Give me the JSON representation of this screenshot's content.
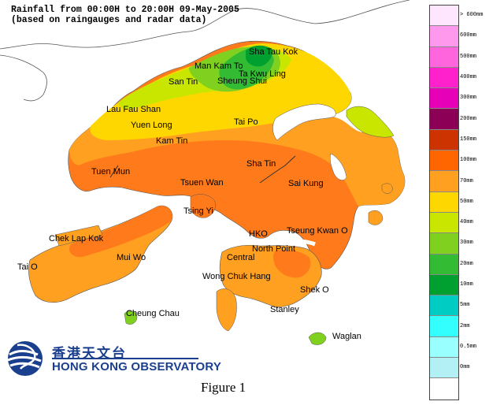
{
  "title": {
    "line1": "Rainfall from 00:00H to 20:00H 09-May-2005",
    "line2": "(based on raingauges and radar data)"
  },
  "places": [
    {
      "id": "sha-tau-kok",
      "label": "Sha Tau Kok"
    },
    {
      "id": "man-kam-to",
      "label": "Man Kam To"
    },
    {
      "id": "ta-kwu-ling",
      "label": "Ta Kwu Ling"
    },
    {
      "id": "sheung-shui",
      "label": "Sheung Shui"
    },
    {
      "id": "san-tin",
      "label": "San Tin"
    },
    {
      "id": "lau-fau-shan",
      "label": "Lau Fau Shan"
    },
    {
      "id": "yuen-long",
      "label": "Yuen Long"
    },
    {
      "id": "tai-po",
      "label": "Tai Po"
    },
    {
      "id": "kam-tin",
      "label": "Kam Tin"
    },
    {
      "id": "sha-tin",
      "label": "Sha Tin"
    },
    {
      "id": "tuen-mun",
      "label": "Tuen Mun"
    },
    {
      "id": "tsuen-wan",
      "label": "Tsuen Wan"
    },
    {
      "id": "sai-kung",
      "label": "Sai Kung"
    },
    {
      "id": "tsing-yi",
      "label": "Tsing Yi"
    },
    {
      "id": "chek-lap-kok",
      "label": "Chek Lap Kok"
    },
    {
      "id": "hko",
      "label": "HKO"
    },
    {
      "id": "tseung-kwan-o",
      "label": "Tseung Kwan O"
    },
    {
      "id": "mui-wo",
      "label": "Mui Wo"
    },
    {
      "id": "north-point",
      "label": "North Point"
    },
    {
      "id": "central",
      "label": "Central"
    },
    {
      "id": "tai-o",
      "label": "Tai O"
    },
    {
      "id": "wong-chuk-hang",
      "label": "Wong Chuk Hang"
    },
    {
      "id": "shek-o",
      "label": "Shek O"
    },
    {
      "id": "stanley",
      "label": "Stanley"
    },
    {
      "id": "cheung-chau",
      "label": "Cheung Chau"
    },
    {
      "id": "waglan",
      "label": "Waglan"
    }
  ],
  "legend": {
    "colors": [
      "#ffe6ff",
      "#ff99ee",
      "#ff66dd",
      "#ff22cc",
      "#e600b8",
      "#8c0055",
      "#cc3300",
      "#ff6600",
      "#ffa020",
      "#ffd700",
      "#c8e600",
      "#80d020",
      "#33bb33",
      "#00a030",
      "#00ccc4",
      "#33ffff",
      "#99ffff",
      "#b3f0f5",
      "#ffffff"
    ],
    "labels": [
      "> 600mm",
      "600mm",
      "500mm",
      "400mm",
      "300mm",
      "200mm",
      "150mm",
      "100mm",
      "70mm",
      "50mm",
      "40mm",
      "30mm",
      "20mm",
      "10mm",
      "5mm",
      "2mm",
      "0.5mm",
      "0mm"
    ]
  },
  "logo": {
    "chinese": "香港天文台",
    "english": "HONG KONG OBSERVATORY"
  },
  "caption": "Figure 1"
}
